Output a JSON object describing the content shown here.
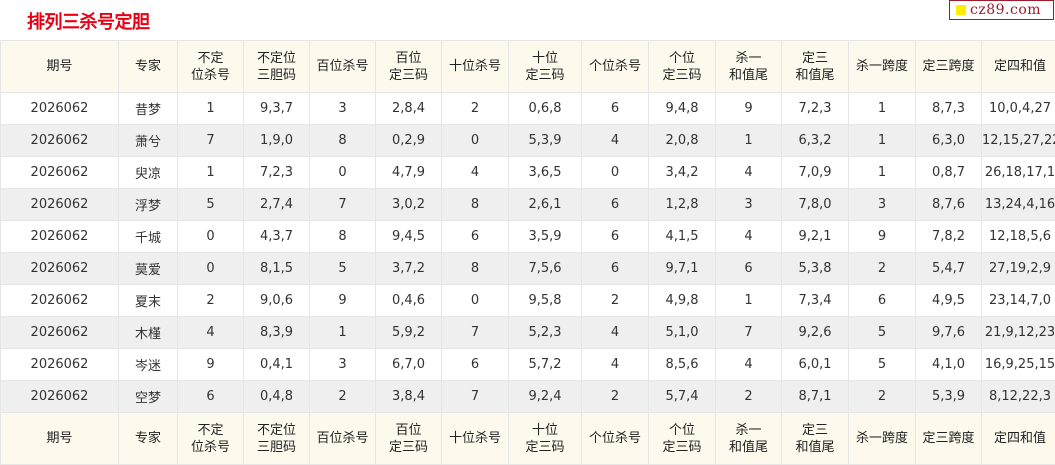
{
  "title": "排列三杀号定胆",
  "watermark": "cz89.com",
  "columns": [
    [
      "期号"
    ],
    [
      "专家"
    ],
    [
      "不定",
      "位杀号"
    ],
    [
      "不定位",
      "三胆码"
    ],
    [
      "百位杀号"
    ],
    [
      "百位",
      "定三码"
    ],
    [
      "十位杀号"
    ],
    [
      "十位",
      "定三码"
    ],
    [
      "个位杀号"
    ],
    [
      "个位",
      "定三码"
    ],
    [
      "杀一",
      "和值尾"
    ],
    [
      "定三",
      "和值尾"
    ],
    [
      "杀一跨度"
    ],
    [
      "定三跨度"
    ],
    [
      "定四和值"
    ]
  ],
  "rows": [
    [
      "2026062",
      "昔梦",
      "1",
      "9,3,7",
      "3",
      "2,8,4",
      "2",
      "0,6,8",
      "6",
      "9,4,8",
      "9",
      "7,2,3",
      "1",
      "8,7,3",
      "10,0,4,27"
    ],
    [
      "2026062",
      "萧兮",
      "7",
      "1,9,0",
      "8",
      "0,2,9",
      "0",
      "5,3,9",
      "4",
      "2,0,8",
      "1",
      "6,3,2",
      "1",
      "6,3,0",
      "12,15,27,22"
    ],
    [
      "2026062",
      "臾凉",
      "1",
      "7,2,3",
      "0",
      "4,7,9",
      "4",
      "3,6,5",
      "0",
      "3,4,2",
      "4",
      "7,0,9",
      "1",
      "0,8,7",
      "26,18,17,1"
    ],
    [
      "2026062",
      "浮梦",
      "5",
      "2,7,4",
      "7",
      "3,0,2",
      "8",
      "2,6,1",
      "6",
      "1,2,8",
      "3",
      "7,8,0",
      "3",
      "8,7,6",
      "13,24,4,16"
    ],
    [
      "2026062",
      "千城",
      "0",
      "4,3,7",
      "8",
      "9,4,5",
      "6",
      "3,5,9",
      "6",
      "4,1,5",
      "4",
      "9,2,1",
      "9",
      "7,8,2",
      "12,18,5,6"
    ],
    [
      "2026062",
      "莫爱",
      "0",
      "8,1,5",
      "5",
      "3,7,2",
      "8",
      "7,5,6",
      "6",
      "9,7,1",
      "6",
      "5,3,8",
      "2",
      "5,4,7",
      "27,19,2,9"
    ],
    [
      "2026062",
      "夏末",
      "2",
      "9,0,6",
      "9",
      "0,4,6",
      "0",
      "9,5,8",
      "2",
      "4,9,8",
      "1",
      "7,3,4",
      "6",
      "4,9,5",
      "23,14,7,0"
    ],
    [
      "2026062",
      "木槿",
      "4",
      "8,3,9",
      "1",
      "5,9,2",
      "7",
      "5,2,3",
      "4",
      "5,1,0",
      "7",
      "9,2,6",
      "5",
      "9,7,6",
      "21,9,12,23"
    ],
    [
      "2026062",
      "岑迷",
      "9",
      "0,4,1",
      "3",
      "6,7,0",
      "6",
      "5,7,2",
      "4",
      "8,5,6",
      "4",
      "6,0,1",
      "5",
      "4,1,0",
      "16,9,25,15"
    ],
    [
      "2026062",
      "空梦",
      "6",
      "0,4,8",
      "2",
      "3,8,4",
      "7",
      "9,2,4",
      "2",
      "5,7,4",
      "2",
      "8,7,1",
      "2",
      "5,3,9",
      "8,12,22,3"
    ]
  ]
}
